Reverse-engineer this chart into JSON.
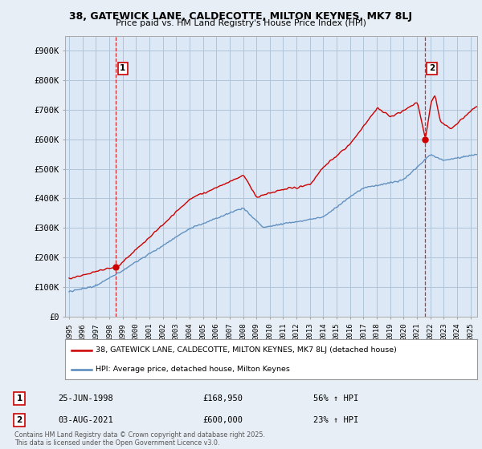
{
  "title_line1": "38, GATEWICK LANE, CALDECOTTE, MILTON KEYNES, MK7 8LJ",
  "title_line2": "Price paid vs. HM Land Registry's House Price Index (HPI)",
  "ylim": [
    0,
    950000
  ],
  "yticks": [
    0,
    100000,
    200000,
    300000,
    400000,
    500000,
    600000,
    700000,
    800000,
    900000
  ],
  "ytick_labels": [
    "£0",
    "£100K",
    "£200K",
    "£300K",
    "£400K",
    "£500K",
    "£600K",
    "£700K",
    "£800K",
    "£900K"
  ],
  "background_color": "#e8eef5",
  "plot_bg_color": "#dce8f5",
  "grid_color": "#b0c4d8",
  "red_color": "#cc0000",
  "blue_color": "#5588bb",
  "marker1_x": 1998.49,
  "marker1_y": 168950,
  "marker2_x": 2021.59,
  "marker2_y": 600000,
  "legend_line1": "38, GATEWICK LANE, CALDECOTTE, MILTON KEYNES, MK7 8LJ (detached house)",
  "legend_line2": "HPI: Average price, detached house, Milton Keynes",
  "annotation1_num": "1",
  "annotation1_date": "25-JUN-1998",
  "annotation1_price": "£168,950",
  "annotation1_hpi": "56% ↑ HPI",
  "annotation2_num": "2",
  "annotation2_date": "03-AUG-2021",
  "annotation2_price": "£600,000",
  "annotation2_hpi": "23% ↑ HPI",
  "footer": "Contains HM Land Registry data © Crown copyright and database right 2025.\nThis data is licensed under the Open Government Licence v3.0.",
  "xmin": 1994.7,
  "xmax": 2025.5,
  "xtick_years": [
    1995,
    1996,
    1997,
    1998,
    1999,
    2000,
    2001,
    2002,
    2003,
    2004,
    2005,
    2006,
    2007,
    2008,
    2009,
    2010,
    2011,
    2012,
    2013,
    2014,
    2015,
    2016,
    2017,
    2018,
    2019,
    2020,
    2021,
    2022,
    2023,
    2024,
    2025
  ]
}
